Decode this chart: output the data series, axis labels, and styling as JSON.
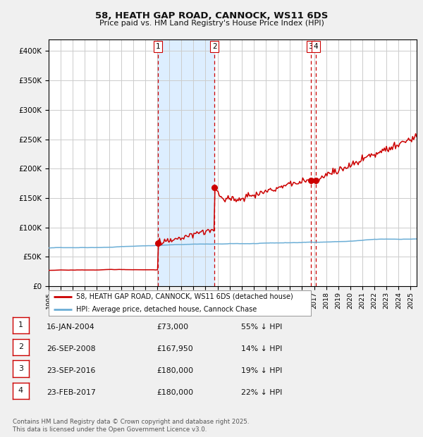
{
  "title": "58, HEATH GAP ROAD, CANNOCK, WS11 6DS",
  "subtitle": "Price paid vs. HM Land Registry's House Price Index (HPI)",
  "hpi_label": "HPI: Average price, detached house, Cannock Chase",
  "property_label": "58, HEATH GAP ROAD, CANNOCK, WS11 6DS (detached house)",
  "footer_line1": "Contains HM Land Registry data © Crown copyright and database right 2025.",
  "footer_line2": "This data is licensed under the Open Government Licence v3.0.",
  "transactions": [
    {
      "num": 1,
      "date": "16-JAN-2004",
      "price": 73000,
      "pct": "55% ↓ HPI"
    },
    {
      "num": 2,
      "date": "26-SEP-2008",
      "price": 167950,
      "pct": "14% ↓ HPI"
    },
    {
      "num": 3,
      "date": "23-SEP-2016",
      "price": 180000,
      "pct": "19% ↓ HPI"
    },
    {
      "num": 4,
      "date": "23-FEB-2017",
      "price": 180000,
      "pct": "22% ↓ HPI"
    }
  ],
  "sale_years": [
    2004.04,
    2008.74,
    2016.73,
    2017.15
  ],
  "sale_prices": [
    73000,
    167950,
    180000,
    180000
  ],
  "background_color": "#f0f0f0",
  "plot_bg": "#ffffff",
  "hpi_color": "#6baed6",
  "property_color": "#cc0000",
  "grid_color": "#cccccc",
  "vline_color": "#cc0000",
  "shade_color": "#ddeeff",
  "ylim": [
    0,
    420000
  ],
  "xlim_start": 1995.0,
  "xlim_end": 2025.5
}
